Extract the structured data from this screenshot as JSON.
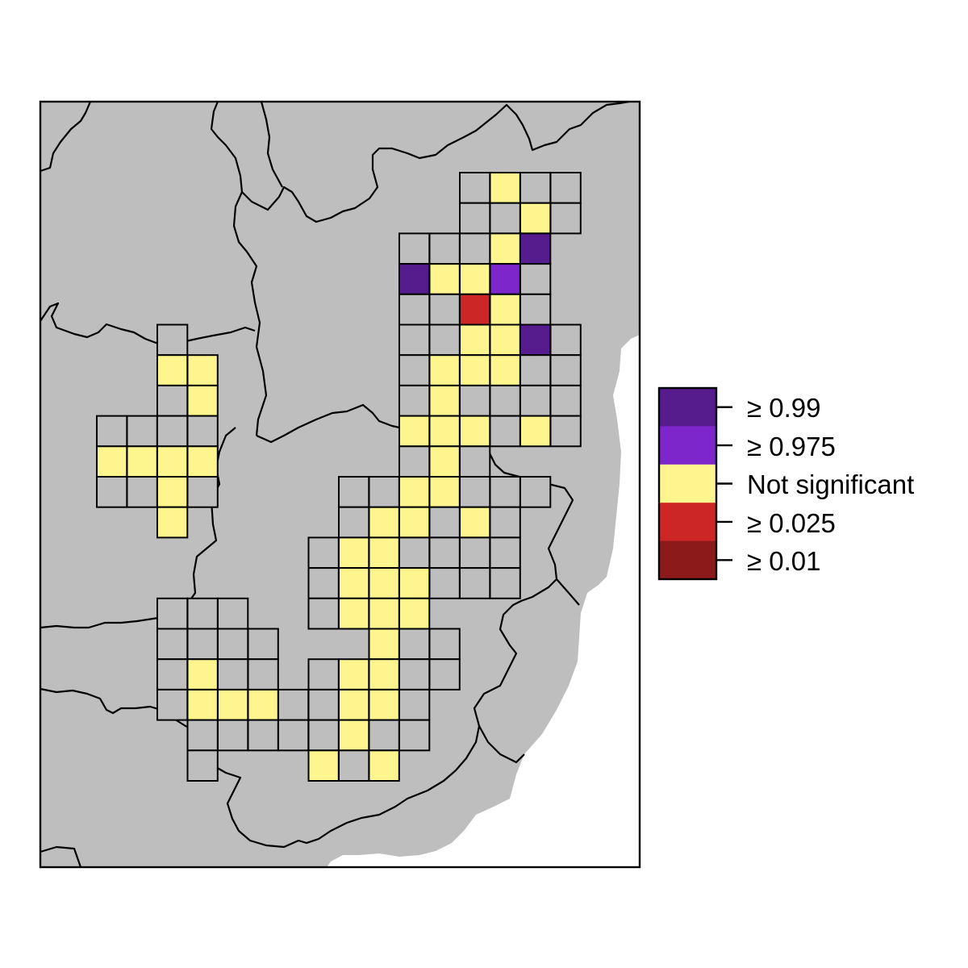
{
  "colors": {
    "land": "#bebebe",
    "sea": "#ffffff",
    "border": "#000000",
    "cell_stroke": "#000000"
  },
  "legend": {
    "items": [
      {
        "key": "ge099",
        "label": "≥ 0.99",
        "color": "#561c8e"
      },
      {
        "key": "ge0975",
        "label": "≥ 0.975",
        "color": "#7d26cc"
      },
      {
        "key": "ns",
        "label": "Not significant",
        "color": "#fff58f"
      },
      {
        "key": "ge0025",
        "label": "≥ 0.025",
        "color": "#cc2626"
      },
      {
        "key": "ge001",
        "label": "≥ 0.01",
        "color": "#8c1a1a"
      }
    ]
  },
  "grid": {
    "categories": {
      "n": "none",
      "y": "ns",
      "d": "ge099",
      "p": "ge0975",
      "r": "ge0025"
    },
    "rows": [
      "...............n...........nyn.............",
      "...............n...........n..............",
      "...............n...........ny.............",
      "...............n.........n..nd............",
      "...............n.........dyyp.............",
      "...............n.........n.r..............",
      "...............n.........n.yy.............",
      "...............n.........n.yyd............",
      "...............n.........n.yy.............",
      "...............n.........n.y..............",
      "...............n.........n..........."
    ]
  }
}
